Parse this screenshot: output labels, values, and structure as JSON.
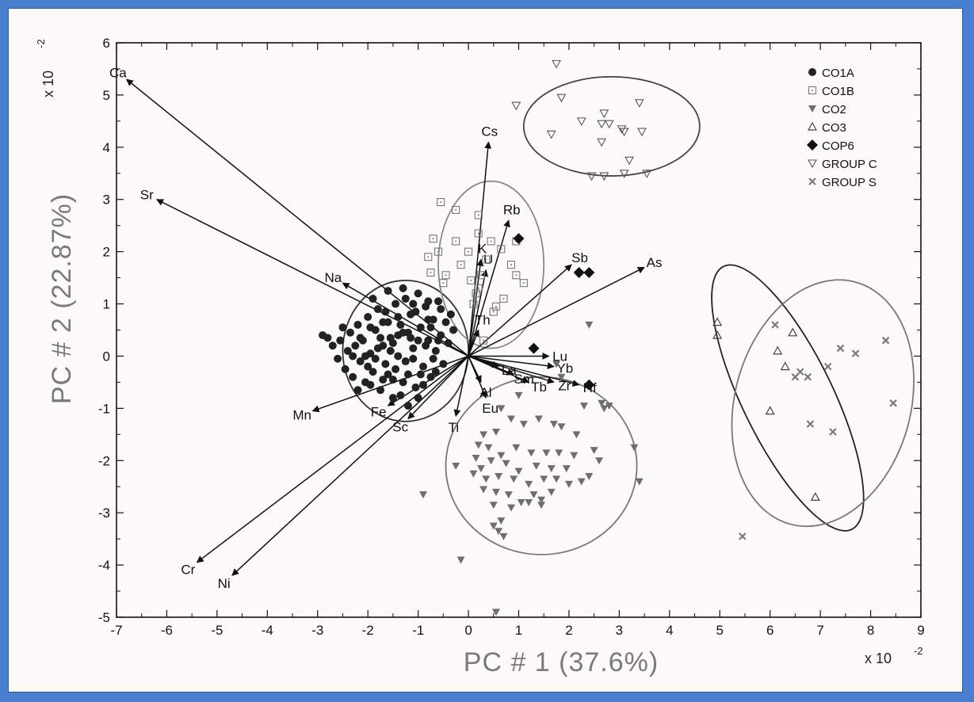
{
  "chart_data": {
    "type": "scatter",
    "title": "",
    "xlabel": "PC # 1 (37.6%)",
    "ylabel": "PC # 2 (22.87%)",
    "x_multiplier": "x 10",
    "y_multiplier": "x 10",
    "multiplier_exponent": "-2",
    "xlim": [
      -7,
      9
    ],
    "ylim": [
      -5,
      6
    ],
    "x_ticks": [
      "-7",
      "-6",
      "-5",
      "-4",
      "-3",
      "-2",
      "-1",
      "0",
      "1",
      "2",
      "3",
      "4",
      "5",
      "6",
      "7",
      "8",
      "9"
    ],
    "y_ticks": [
      "-5",
      "-4",
      "-3",
      "-2",
      "-1",
      "0",
      "1",
      "2",
      "3",
      "4",
      "5",
      "6"
    ],
    "grid": false,
    "legend_position": "top-right",
    "legend": [
      {
        "label": "CO1A",
        "marker": "circle-filled",
        "color": "#222222"
      },
      {
        "label": "CO1B",
        "marker": "square-open-dot",
        "color": "#777777"
      },
      {
        "label": "CO2",
        "marker": "triangle-down-filled",
        "color": "#6e6e6e"
      },
      {
        "label": "CO3",
        "marker": "triangle-up-open",
        "color": "#444444"
      },
      {
        "label": "COP6",
        "marker": "diamond-filled",
        "color": "#111111"
      },
      {
        "label": "GROUP C",
        "marker": "triangle-down-open",
        "color": "#555555"
      },
      {
        "label": "GROUP S",
        "marker": "x",
        "color": "#7a7a7a"
      }
    ],
    "vectors": [
      {
        "label": "Ca",
        "x": -6.8,
        "y": 5.3
      },
      {
        "label": "Sr",
        "x": -6.2,
        "y": 3.0
      },
      {
        "label": "Na",
        "x": -2.5,
        "y": 1.4
      },
      {
        "label": "Mn",
        "x": -3.1,
        "y": -1.05
      },
      {
        "label": "Fe",
        "x": -1.6,
        "y": -0.95
      },
      {
        "label": "Sc",
        "x": -1.2,
        "y": -1.2
      },
      {
        "label": "Cr",
        "x": -5.4,
        "y": -3.95
      },
      {
        "label": "Ni",
        "x": -4.7,
        "y": -4.2
      },
      {
        "label": "Cs",
        "x": 0.4,
        "y": 4.1
      },
      {
        "label": "Rb",
        "x": 0.8,
        "y": 2.6
      },
      {
        "label": "K",
        "x": 0.25,
        "y": 1.85
      },
      {
        "label": "U",
        "x": 0.35,
        "y": 1.65
      },
      {
        "label": "Th",
        "x": 0.2,
        "y": 0.5
      },
      {
        "label": "Sb",
        "x": 2.05,
        "y": 1.75
      },
      {
        "label": "As",
        "x": 3.5,
        "y": 1.7
      },
      {
        "label": "Lu",
        "x": 1.6,
        "y": 0.0
      },
      {
        "label": "Yb",
        "x": 1.7,
        "y": -0.2
      },
      {
        "label": "Hf",
        "x": 2.2,
        "y": -0.55
      },
      {
        "label": "Zr",
        "x": 1.7,
        "y": -0.5
      },
      {
        "label": "Tb",
        "x": 1.2,
        "y": -0.5
      },
      {
        "label": "Sm",
        "x": 0.9,
        "y": -0.35
      },
      {
        "label": "La",
        "x": 0.6,
        "y": -0.2
      },
      {
        "label": "Eu",
        "x": 0.35,
        "y": -0.8
      },
      {
        "label": "Al",
        "x": 0.25,
        "y": -0.5
      },
      {
        "label": "Ti",
        "x": -0.25,
        "y": -1.15
      }
    ],
    "ellipses": [
      {
        "group": "CO1A",
        "cx": -1.25,
        "cy": 0.1,
        "rx": 1.25,
        "ry": 1.35,
        "angle": 0,
        "color": "#333333"
      },
      {
        "group": "CO1B",
        "cx": 0.45,
        "cy": 1.75,
        "rx": 1.05,
        "ry": 1.6,
        "angle": 0,
        "color": "#888888"
      },
      {
        "group": "CO2",
        "cx": 1.45,
        "cy": -2.1,
        "rx": 1.9,
        "ry": 1.7,
        "angle": 0,
        "color": "#777777"
      },
      {
        "group": "GROUP C",
        "cx": 2.85,
        "cy": 4.4,
        "rx": 1.75,
        "ry": 0.95,
        "angle": 0,
        "color": "#444444"
      },
      {
        "group": "CO3",
        "cx": 6.35,
        "cy": -0.8,
        "rx": 0.9,
        "ry": 2.8,
        "angle": -26,
        "color": "#222222"
      },
      {
        "group": "GROUP S",
        "cx": 7.05,
        "cy": -0.9,
        "rx": 1.75,
        "ry": 2.4,
        "angle": 15,
        "color": "#777777"
      }
    ],
    "series": [
      {
        "name": "CO1A",
        "marker": "circle-filled",
        "color": "#222222",
        "points": [
          [
            -2.9,
            0.4
          ],
          [
            -2.8,
            0.35
          ],
          [
            -2.7,
            0.2
          ],
          [
            -2.6,
            -0.05
          ],
          [
            -2.55,
            0.3
          ],
          [
            -2.5,
            0.55
          ],
          [
            -2.45,
            -0.25
          ],
          [
            -2.4,
            0.1
          ],
          [
            -2.35,
            0.45
          ],
          [
            -2.3,
            -0.4
          ],
          [
            -2.25,
            0.2
          ],
          [
            -2.2,
            0.6
          ],
          [
            -2.15,
            -0.1
          ],
          [
            -2.1,
            0.3
          ],
          [
            -2.05,
            -0.5
          ],
          [
            -2.0,
            0.75
          ],
          [
            -1.95,
            0.05
          ],
          [
            -1.9,
            -0.3
          ],
          [
            -1.85,
            0.5
          ],
          [
            -1.8,
            0.9
          ],
          [
            -1.75,
            -0.65
          ],
          [
            -1.7,
            0.2
          ],
          [
            -1.65,
            -0.15
          ],
          [
            -1.6,
            0.65
          ],
          [
            -1.55,
            0.35
          ],
          [
            -1.5,
            -0.45
          ],
          [
            -1.45,
            1.0
          ],
          [
            -1.4,
            0.0
          ],
          [
            -1.35,
            -0.75
          ],
          [
            -1.3,
            0.45
          ],
          [
            -1.25,
            1.1
          ],
          [
            -1.2,
            -0.35
          ],
          [
            -1.15,
            0.8
          ],
          [
            -1.1,
            0.15
          ],
          [
            -1.05,
            -0.6
          ],
          [
            -1.0,
            1.2
          ],
          [
            -0.95,
            0.55
          ],
          [
            -0.9,
            -0.2
          ],
          [
            -0.85,
            0.95
          ],
          [
            -0.8,
            0.3
          ],
          [
            -0.75,
            -0.4
          ],
          [
            -0.7,
            0.7
          ],
          [
            -0.65,
            0.1
          ],
          [
            -0.6,
            1.05
          ],
          [
            -0.55,
            0.4
          ],
          [
            -0.5,
            -0.15
          ],
          [
            -0.45,
            0.65
          ],
          [
            -0.4,
            0.25
          ],
          [
            -0.35,
            0.8
          ],
          [
            -0.3,
            0.5
          ],
          [
            -1.95,
            0.55
          ],
          [
            -1.85,
            -0.05
          ],
          [
            -1.75,
            0.35
          ],
          [
            -1.65,
            0.85
          ],
          [
            -1.55,
            0.1
          ],
          [
            -1.45,
            -0.25
          ],
          [
            -1.35,
            0.6
          ],
          [
            -1.25,
            -0.1
          ],
          [
            -1.15,
            0.35
          ],
          [
            -1.05,
            0.85
          ],
          [
            -0.95,
            -0.35
          ],
          [
            -0.85,
            0.2
          ],
          [
            -0.75,
            0.55
          ],
          [
            -0.65,
            -0.3
          ],
          [
            -0.55,
            0.9
          ],
          [
            -2.15,
            0.35
          ],
          [
            -2.05,
            0.0
          ],
          [
            -1.95,
            -0.55
          ],
          [
            -1.8,
            0.15
          ],
          [
            -1.7,
            0.65
          ],
          [
            -1.6,
            -0.35
          ],
          [
            -1.5,
            0.25
          ],
          [
            -1.4,
            0.75
          ],
          [
            -1.3,
            -0.5
          ],
          [
            -1.2,
            0.45
          ],
          [
            -1.1,
            -0.05
          ],
          [
            -1.0,
            0.3
          ],
          [
            -0.9,
            -0.55
          ],
          [
            -0.8,
            0.7
          ],
          [
            -0.7,
            -0.05
          ],
          [
            -2.3,
            0.0
          ],
          [
            -2.0,
            -0.2
          ],
          [
            -1.7,
            -0.45
          ],
          [
            -1.4,
            0.4
          ],
          [
            -1.1,
            1.0
          ],
          [
            -0.8,
            1.05
          ],
          [
            -1.6,
            1.25
          ],
          [
            -1.3,
            1.3
          ],
          [
            -1.9,
            1.1
          ],
          [
            -1.0,
            -0.8
          ],
          [
            -1.5,
            -0.8
          ],
          [
            -1.2,
            -0.95
          ],
          [
            -2.2,
            -0.65
          ],
          [
            -0.6,
            0.3
          ]
        ]
      },
      {
        "name": "CO1B",
        "marker": "square-open-dot",
        "color": "#777777",
        "points": [
          [
            -0.55,
            2.95
          ],
          [
            -0.25,
            2.8
          ],
          [
            0.2,
            2.7
          ],
          [
            0.2,
            2.35
          ],
          [
            -0.7,
            2.25
          ],
          [
            -0.25,
            2.2
          ],
          [
            0.45,
            2.2
          ],
          [
            0.95,
            2.2
          ],
          [
            -0.6,
            2.0
          ],
          [
            0.0,
            2.0
          ],
          [
            0.65,
            2.05
          ],
          [
            -0.8,
            1.9
          ],
          [
            -0.15,
            1.75
          ],
          [
            0.35,
            1.85
          ],
          [
            0.85,
            1.75
          ],
          [
            -0.75,
            1.6
          ],
          [
            -0.45,
            1.55
          ],
          [
            0.25,
            1.55
          ],
          [
            0.95,
            1.55
          ],
          [
            1.1,
            1.4
          ],
          [
            -0.5,
            1.4
          ],
          [
            0.05,
            1.45
          ],
          [
            0.15,
            1.2
          ],
          [
            0.7,
            1.1
          ],
          [
            0.1,
            1.0
          ],
          [
            0.55,
            0.95
          ],
          [
            0.3,
            0.3
          ],
          [
            0.5,
            0.85
          ],
          [
            0.2,
            1.3
          ]
        ]
      },
      {
        "name": "CO2",
        "marker": "triangle-down-filled",
        "color": "#6e6e6e",
        "points": [
          [
            -0.9,
            -2.65
          ],
          [
            -0.15,
            -3.9
          ],
          [
            0.55,
            -4.9
          ],
          [
            2.4,
            0.6
          ],
          [
            1.75,
            -0.15
          ],
          [
            1.85,
            -0.4
          ],
          [
            2.3,
            -0.95
          ],
          [
            2.65,
            -0.9
          ],
          [
            2.8,
            -0.95
          ],
          [
            3.3,
            -1.75
          ],
          [
            3.4,
            -2.4
          ],
          [
            0.3,
            -1.5
          ],
          [
            0.55,
            -1.45
          ],
          [
            0.85,
            -1.2
          ],
          [
            1.1,
            -1.3
          ],
          [
            1.4,
            -1.2
          ],
          [
            1.7,
            -1.3
          ],
          [
            1.85,
            -1.35
          ],
          [
            2.15,
            -1.5
          ],
          [
            0.2,
            -1.7
          ],
          [
            0.4,
            -1.75
          ],
          [
            0.65,
            -1.9
          ],
          [
            0.95,
            -1.75
          ],
          [
            1.25,
            -1.85
          ],
          [
            1.55,
            -1.85
          ],
          [
            1.8,
            -1.85
          ],
          [
            2.1,
            -1.9
          ],
          [
            2.5,
            -1.8
          ],
          [
            2.6,
            -2.0
          ],
          [
            -0.25,
            -2.1
          ],
          [
            0.15,
            -1.95
          ],
          [
            0.45,
            -2.0
          ],
          [
            0.75,
            -2.05
          ],
          [
            1.0,
            -2.2
          ],
          [
            1.35,
            -2.1
          ],
          [
            1.65,
            -2.15
          ],
          [
            1.95,
            -2.15
          ],
          [
            2.4,
            -2.3
          ],
          [
            0.1,
            -2.25
          ],
          [
            0.35,
            -2.35
          ],
          [
            0.6,
            -2.3
          ],
          [
            0.9,
            -2.35
          ],
          [
            1.2,
            -2.45
          ],
          [
            1.5,
            -2.35
          ],
          [
            1.75,
            -2.35
          ],
          [
            2.0,
            -2.45
          ],
          [
            2.25,
            -2.4
          ],
          [
            0.3,
            -2.55
          ],
          [
            0.55,
            -2.6
          ],
          [
            0.8,
            -2.65
          ],
          [
            1.3,
            -2.65
          ],
          [
            1.45,
            -2.75
          ],
          [
            1.65,
            -2.6
          ],
          [
            0.5,
            -2.85
          ],
          [
            0.85,
            -2.9
          ],
          [
            1.05,
            -2.8
          ],
          [
            0.65,
            -3.15
          ],
          [
            0.5,
            -3.25
          ],
          [
            0.6,
            -3.35
          ],
          [
            0.7,
            -3.45
          ],
          [
            1.45,
            -2.85
          ],
          [
            1.2,
            -2.8
          ],
          [
            0.25,
            -2.15
          ],
          [
            1.0,
            -0.75
          ],
          [
            0.65,
            -1.0
          ],
          [
            2.7,
            -1.0
          ]
        ]
      },
      {
        "name": "CO3",
        "marker": "triangle-up-open",
        "color": "#444444",
        "points": [
          [
            4.95,
            0.65
          ],
          [
            4.95,
            0.4
          ],
          [
            6.15,
            0.1
          ],
          [
            6.45,
            0.45
          ],
          [
            6.3,
            -0.2
          ],
          [
            6.0,
            -1.05
          ],
          [
            6.9,
            -2.7
          ]
        ]
      },
      {
        "name": "COP6",
        "marker": "diamond-filled",
        "color": "#111111",
        "points": [
          [
            1.0,
            2.25
          ],
          [
            2.2,
            1.6
          ],
          [
            2.4,
            1.6
          ],
          [
            1.3,
            0.15
          ],
          [
            2.4,
            -0.55
          ]
        ]
      },
      {
        "name": "GROUP C",
        "marker": "triangle-down-open",
        "color": "#555555",
        "points": [
          [
            1.75,
            5.6
          ],
          [
            0.95,
            4.8
          ],
          [
            1.85,
            4.95
          ],
          [
            2.25,
            4.5
          ],
          [
            2.7,
            4.65
          ],
          [
            2.65,
            4.45
          ],
          [
            2.8,
            4.45
          ],
          [
            3.05,
            4.35
          ],
          [
            3.1,
            4.3
          ],
          [
            3.4,
            4.85
          ],
          [
            3.45,
            4.3
          ],
          [
            1.65,
            4.25
          ],
          [
            2.65,
            4.1
          ],
          [
            3.2,
            3.75
          ],
          [
            2.45,
            3.45
          ],
          [
            2.7,
            3.45
          ],
          [
            3.1,
            3.5
          ],
          [
            3.55,
            3.5
          ]
        ]
      },
      {
        "name": "GROUP S",
        "marker": "x",
        "color": "#7a7a7a",
        "points": [
          [
            6.1,
            0.6
          ],
          [
            7.4,
            0.15
          ],
          [
            7.7,
            0.05
          ],
          [
            8.3,
            0.3
          ],
          [
            7.15,
            -0.2
          ],
          [
            6.6,
            -0.3
          ],
          [
            6.75,
            -0.4
          ],
          [
            6.5,
            -0.4
          ],
          [
            8.45,
            -0.9
          ],
          [
            6.8,
            -1.3
          ],
          [
            7.25,
            -1.45
          ],
          [
            5.45,
            -3.45
          ]
        ]
      }
    ]
  }
}
